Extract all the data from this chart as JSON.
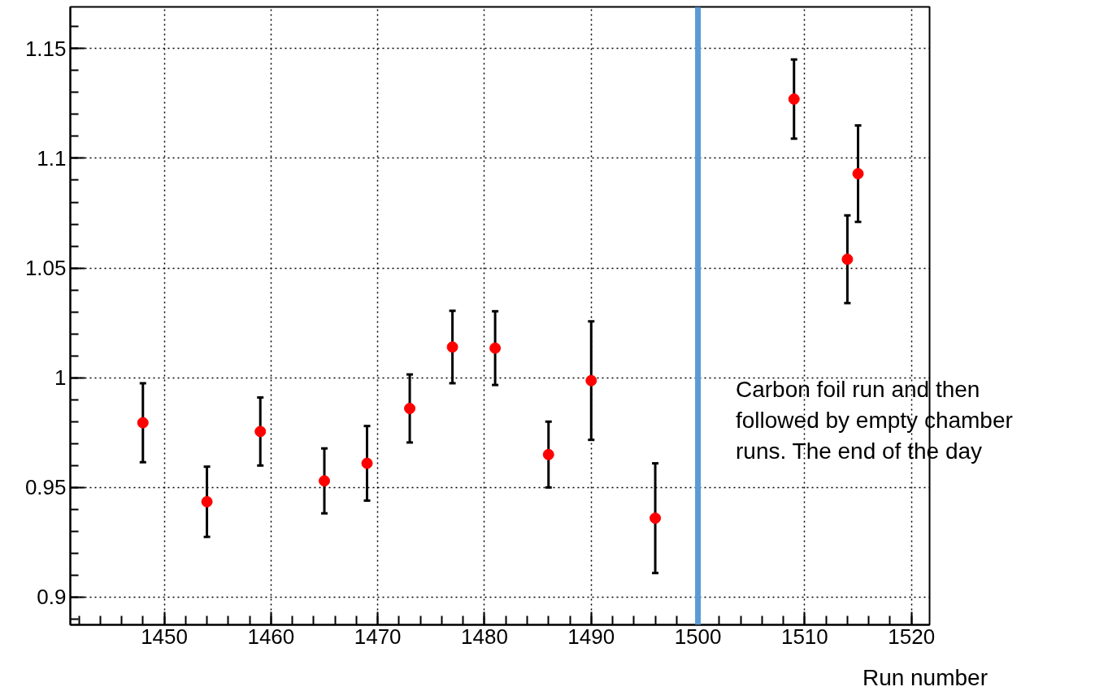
{
  "chart_data": {
    "type": "scatter",
    "xlabel": "Run number",
    "x": [
      1448,
      1454,
      1459,
      1465,
      1469,
      1473,
      1477,
      1481,
      1486,
      1490,
      1496,
      1509,
      1514,
      1515
    ],
    "series": [
      {
        "color": "#ff0000",
        "values": [
          0.9795,
          0.9435,
          0.9755,
          0.953,
          0.961,
          0.986,
          1.014,
          1.0135,
          0.965,
          0.9987,
          0.936,
          1.127,
          1.054,
          1.093
        ],
        "errors": [
          0.018,
          0.016,
          0.0155,
          0.0148,
          0.017,
          0.0155,
          0.0165,
          0.0168,
          0.015,
          0.027,
          0.025,
          0.018,
          0.02,
          0.022
        ]
      }
    ],
    "marker": "circle",
    "xlim": [
      1441.2,
      1521.7
    ],
    "ylim": [
      0.8874,
      1.169
    ],
    "xticks": [
      1450,
      1460,
      1470,
      1480,
      1490,
      1500,
      1510,
      1520
    ],
    "yticks": [
      0.9,
      0.95,
      1,
      1.05,
      1.1,
      1.15
    ],
    "grid": true,
    "ref_lines": [
      {
        "axis": "x",
        "value": 1500,
        "color": "#5b9bd5"
      }
    ],
    "annotations": [
      "Carbon foil run and then\nfollowed by empty chamber\nruns. The end of the day"
    ]
  }
}
